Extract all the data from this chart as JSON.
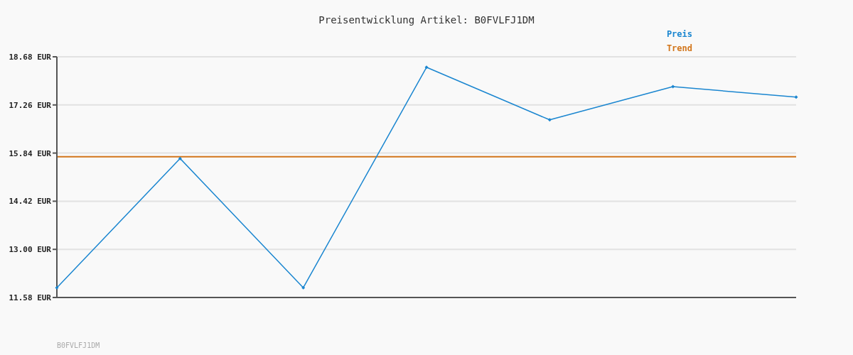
{
  "chart_data": {
    "type": "line",
    "title": "Preisentwicklung Artikel: B0FVLFJ1DM",
    "categories": [
      null,
      null,
      null,
      null,
      null,
      null,
      null
    ],
    "series": [
      {
        "name": "Preis",
        "color": "#1a86d0",
        "values": [
          11.87,
          15.68,
          11.87,
          18.37,
          16.82,
          17.8,
          17.49
        ]
      }
    ],
    "ref_lines": [
      {
        "axis": "y",
        "value": 15.73,
        "label": "Trend",
        "color": "#d2751a"
      }
    ],
    "ylim": [
      11.58,
      18.68
    ],
    "yticks": [
      {
        "value": 11.58,
        "label": "11.58 EUR"
      },
      {
        "value": 13.0,
        "label": "13.00 EUR"
      },
      {
        "value": 14.42,
        "label": "14.42 EUR"
      },
      {
        "value": 15.84,
        "label": "15.84 EUR"
      },
      {
        "value": 17.26,
        "label": "17.26 EUR"
      },
      {
        "value": 18.68,
        "label": "18.68 EUR"
      }
    ],
    "grid": "y",
    "legend": "top right",
    "marker": "diamond",
    "tick_labels": "y",
    "annotations": [
      "B0FVLFJ1DM"
    ]
  }
}
